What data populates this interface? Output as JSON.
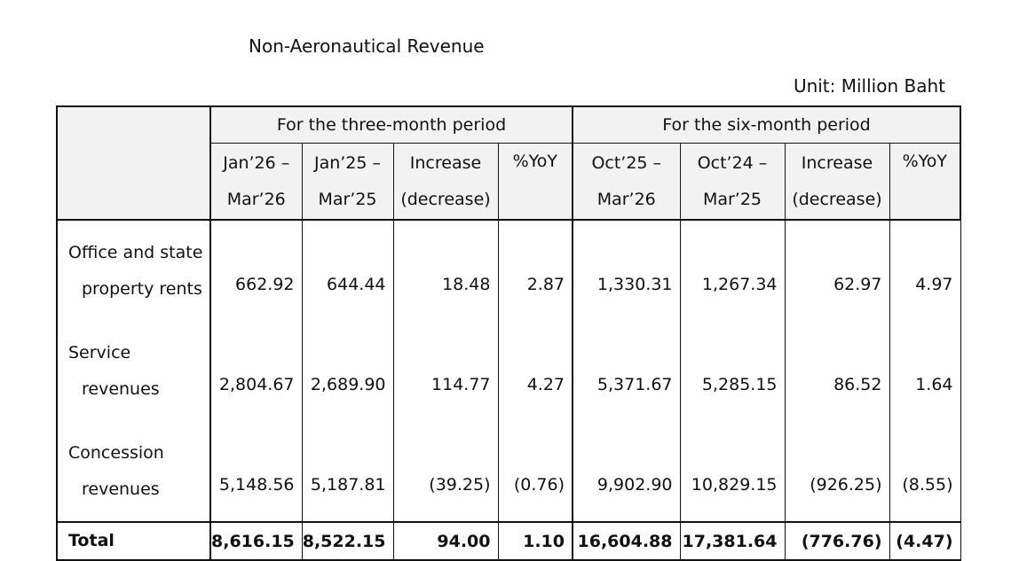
{
  "title": "Non-Aeronautical Revenue",
  "unit": "Unit: Million Baht",
  "groups": {
    "three_month": "For the three-month period",
    "six_month": "For the six-month period"
  },
  "columns": {
    "c1": {
      "l1": "Jan’26 –",
      "l2": "Mar’26"
    },
    "c2": {
      "l1": "Jan’25 –",
      "l2": "Mar’25"
    },
    "c3": {
      "l1": "Increase",
      "l2": "(decrease)"
    },
    "c4": {
      "l1": "%YoY"
    },
    "c5": {
      "l1": "Oct’25 –",
      "l2": "Mar’26"
    },
    "c6": {
      "l1": "Oct’24 –",
      "l2": "Mar’25"
    },
    "c7": {
      "l1": "Increase",
      "l2": "(decrease)"
    },
    "c8": {
      "l1": "%YoY"
    }
  },
  "rows": [
    {
      "l1": "Office and state",
      "l2": "property rents",
      "v": [
        "662.92",
        "644.44",
        "18.48",
        "2.87",
        "1,330.31",
        "1,267.34",
        "62.97",
        "4.97"
      ]
    },
    {
      "l1": "Service",
      "l2": "revenues",
      "v": [
        "2,804.67",
        "2,689.90",
        "114.77",
        "4.27",
        "5,371.67",
        "5,285.15",
        "86.52",
        "1.64"
      ]
    },
    {
      "l1": "Concession",
      "l2": "revenues",
      "v": [
        "5,148.56",
        "5,187.81",
        "(39.25)",
        "(0.76)",
        "9,902.90",
        "10,829.15",
        "(926.25)",
        "(8.55)"
      ]
    }
  ],
  "total": {
    "label": "Total",
    "v": [
      "8,616.15",
      "8,522.15",
      "94.00",
      "1.10",
      "16,604.88",
      "17,381.64",
      "(776.76)",
      "(4.47)"
    ]
  }
}
